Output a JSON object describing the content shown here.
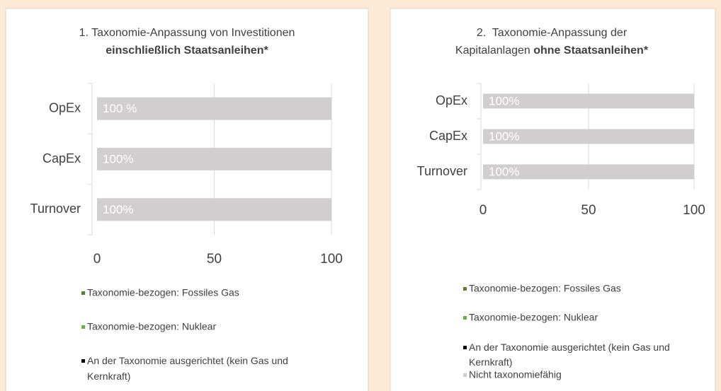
{
  "chart_data": [
    {
      "type": "hbar",
      "title_lines": [
        [
          {
            "text": "1. Taxonomie-Anpassung von Investitionen",
            "bold": false
          }
        ],
        [
          {
            "text": "einschließlich Staatsanleihen*",
            "bold": true
          }
        ]
      ],
      "categories": [
        "OpEx",
        "CapEx",
        "Turnover"
      ],
      "series": [
        {
          "name": "Taxonomie-bezogen: Fossiles Gas",
          "color": "#548235",
          "values": [
            0,
            0,
            0
          ]
        },
        {
          "name": "Taxonomie-bezogen: Nuklear",
          "color": "#70ad47",
          "values": [
            0,
            0,
            0
          ]
        },
        {
          "name": "An der Taxonomie ausgerichtet (kein Gas und Kernkraft)",
          "color": "#000000",
          "values": [
            0,
            0,
            0
          ]
        },
        {
          "color": "#d0cece",
          "values": [
            100,
            100,
            100
          ],
          "value_labels": [
            "100 %",
            "100%",
            "100%"
          ]
        }
      ],
      "xlim": [
        0,
        100
      ],
      "xticks": [
        0,
        50,
        100
      ],
      "grid": true
    },
    {
      "type": "hbar",
      "title_lines": [
        [
          {
            "text": "2.  Taxonomie-Anpassung der",
            "bold": false
          }
        ],
        [
          {
            "text": "Kapitalanlagen ",
            "bold": false
          },
          {
            "text": "ohne Staatsanleihen*",
            "bold": true
          }
        ]
      ],
      "categories": [
        "OpEx",
        "CapEx",
        "Turnover"
      ],
      "series": [
        {
          "name": "Taxonomie-bezogen: Fossiles Gas",
          "color": "#548235",
          "values": [
            0,
            0,
            0
          ]
        },
        {
          "name": "Taxonomie-bezogen: Nuklear",
          "color": "#70ad47",
          "values": [
            0,
            0,
            0
          ]
        },
        {
          "name": "An der Taxonomie ausgerichtet (kein Gas und Kernkraft)",
          "color": "#000000",
          "values": [
            0,
            0,
            0
          ]
        },
        {
          "name": "Nicht taxonomiefähig",
          "color": "#d0cece",
          "values": [
            100,
            100,
            100
          ],
          "value_labels": [
            "100%",
            "100%",
            "100%"
          ]
        }
      ],
      "xlim": [
        0,
        100
      ],
      "xticks": [
        0,
        50,
        100
      ],
      "grid": true
    }
  ]
}
